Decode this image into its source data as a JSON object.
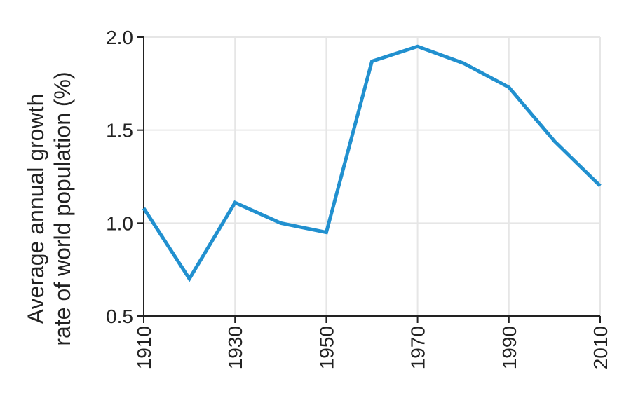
{
  "chart_data": {
    "type": "line",
    "title": "",
    "xlabel": "",
    "ylabel_lines": [
      "Average annual growth",
      "rate of world population (%)"
    ],
    "x": [
      1910,
      1920,
      1930,
      1940,
      1950,
      1960,
      1970,
      1980,
      1990,
      2000,
      2010
    ],
    "series": [
      {
        "values": [
          1.08,
          0.7,
          1.11,
          1.0,
          0.95,
          1.87,
          1.95,
          1.86,
          1.73,
          1.44,
          1.2
        ]
      }
    ],
    "xlim": [
      1910,
      2010
    ],
    "ylim": [
      0.5,
      2.0
    ],
    "xticks": [
      "1910",
      "1930",
      "1950",
      "1970",
      "1990",
      "2010"
    ],
    "yticks": [
      "0.5",
      "1.0",
      "1.5",
      "2.0"
    ],
    "grid": true,
    "legend": "none",
    "colors": {
      "line": "#2190cf",
      "grid": "#e6e6e6",
      "axis": "#222222"
    }
  }
}
